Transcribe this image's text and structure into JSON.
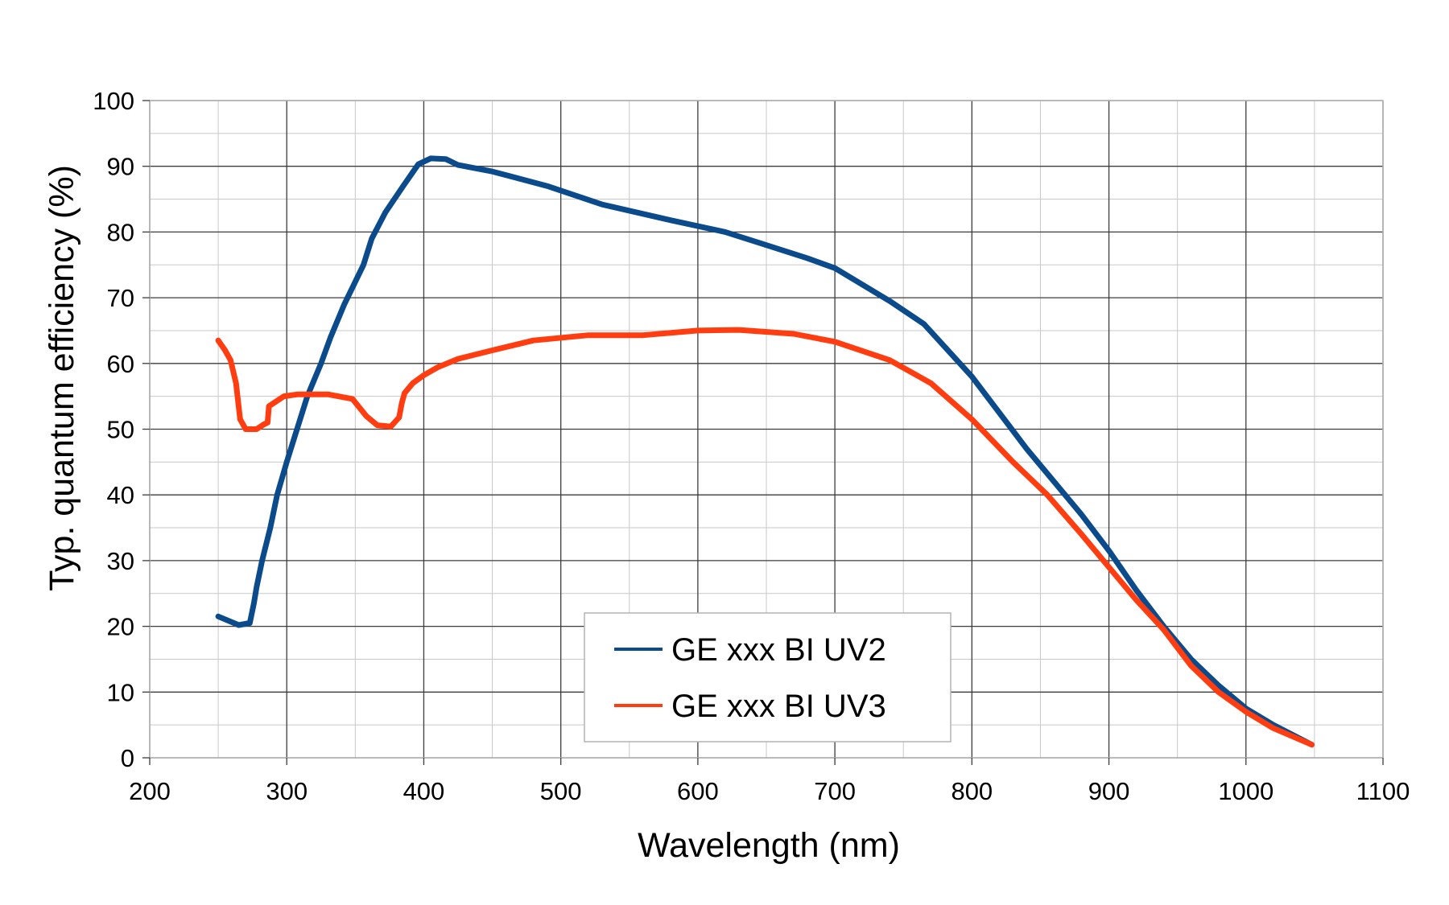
{
  "chart_data": {
    "type": "line",
    "title": "",
    "xlabel": "Wavelength (nm)",
    "ylabel": "Typ. quantum efficiency (%)",
    "xlim": [
      200,
      1100
    ],
    "ylim": [
      0,
      100
    ],
    "x_ticks": [
      200,
      300,
      400,
      500,
      600,
      700,
      800,
      900,
      1000,
      1100
    ],
    "y_ticks": [
      0,
      10,
      20,
      30,
      40,
      50,
      60,
      70,
      80,
      90,
      100
    ],
    "grid": true,
    "legend_position": "bottom-center",
    "series": [
      {
        "name": "GE xxx BI UV2",
        "color": "#0b4a8b",
        "points": [
          [
            250,
            21.5
          ],
          [
            265,
            20.2
          ],
          [
            273,
            20.5
          ],
          [
            276,
            23.5
          ],
          [
            278,
            26
          ],
          [
            282,
            30
          ],
          [
            288,
            35
          ],
          [
            293,
            40
          ],
          [
            300,
            45
          ],
          [
            306,
            49
          ],
          [
            315,
            55
          ],
          [
            325,
            60
          ],
          [
            332,
            64
          ],
          [
            342,
            69
          ],
          [
            356,
            75
          ],
          [
            362,
            79
          ],
          [
            372,
            83
          ],
          [
            385,
            87
          ],
          [
            396,
            90.3
          ],
          [
            405,
            91.2
          ],
          [
            416,
            91.1
          ],
          [
            425,
            90.2
          ],
          [
            450,
            89.2
          ],
          [
            490,
            87
          ],
          [
            530,
            84.2
          ],
          [
            580,
            81.8
          ],
          [
            620,
            80
          ],
          [
            650,
            78
          ],
          [
            680,
            76
          ],
          [
            700,
            74.5
          ],
          [
            740,
            69.5
          ],
          [
            765,
            66
          ],
          [
            800,
            58
          ],
          [
            840,
            47
          ],
          [
            880,
            37
          ],
          [
            900,
            31.5
          ],
          [
            920,
            25.5
          ],
          [
            940,
            20
          ],
          [
            960,
            15
          ],
          [
            980,
            11
          ],
          [
            1000,
            7.5
          ],
          [
            1020,
            5
          ],
          [
            1048,
            2
          ]
        ]
      },
      {
        "name": "GE xxx BI UV3",
        "color": "#ff3d10",
        "points": [
          [
            250,
            63.5
          ],
          [
            255,
            62
          ],
          [
            259,
            60.5
          ],
          [
            263,
            57
          ],
          [
            266,
            51.5
          ],
          [
            270,
            50
          ],
          [
            278,
            50
          ],
          [
            283,
            50.7
          ],
          [
            286,
            51
          ],
          [
            287,
            53.5
          ],
          [
            298,
            55
          ],
          [
            308,
            55.3
          ],
          [
            330,
            55.3
          ],
          [
            348,
            54.6
          ],
          [
            358,
            52
          ],
          [
            366,
            50.6
          ],
          [
            376,
            50.4
          ],
          [
            382,
            51.8
          ],
          [
            384,
            54
          ],
          [
            386,
            55.5
          ],
          [
            392,
            57
          ],
          [
            400,
            58.2
          ],
          [
            410,
            59.4
          ],
          [
            425,
            60.7
          ],
          [
            450,
            62
          ],
          [
            480,
            63.5
          ],
          [
            520,
            64.3
          ],
          [
            560,
            64.3
          ],
          [
            600,
            65
          ],
          [
            630,
            65.1
          ],
          [
            670,
            64.5
          ],
          [
            700,
            63.3
          ],
          [
            740,
            60.5
          ],
          [
            770,
            57
          ],
          [
            800,
            51.5
          ],
          [
            830,
            45
          ],
          [
            855,
            40
          ],
          [
            880,
            34
          ],
          [
            900,
            29
          ],
          [
            920,
            24
          ],
          [
            940,
            19.5
          ],
          [
            960,
            14
          ],
          [
            980,
            10
          ],
          [
            1000,
            7
          ],
          [
            1020,
            4.5
          ],
          [
            1048,
            2
          ]
        ]
      }
    ]
  }
}
